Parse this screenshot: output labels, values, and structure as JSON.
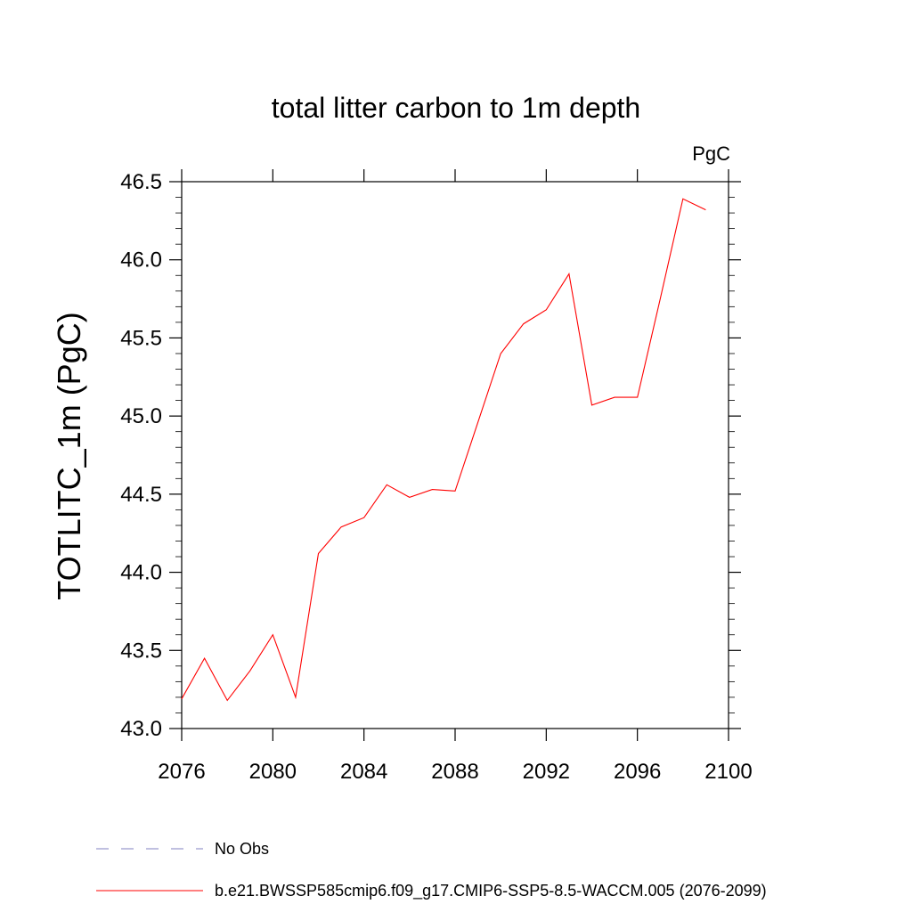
{
  "chart_data": {
    "type": "line",
    "title": "total litter carbon to 1m depth",
    "units_label": "PgC",
    "xlabel": "",
    "ylabel": "TOTLITC_1m  (PgC)",
    "xlim": [
      2076,
      2100
    ],
    "ylim": [
      43.0,
      46.5
    ],
    "xticks": [
      2076,
      2080,
      2084,
      2088,
      2092,
      2096,
      2100
    ],
    "yticks": [
      43.0,
      43.5,
      44.0,
      44.5,
      45.0,
      45.5,
      46.0,
      46.5
    ],
    "xtick_labels": [
      "2076",
      "2080",
      "2084",
      "2088",
      "2092",
      "2096",
      "2100"
    ],
    "ytick_labels": [
      "43.0",
      "43.5",
      "44.0",
      "44.5",
      "45.0",
      "45.5",
      "46.0",
      "46.5"
    ],
    "grid": false,
    "legend_position": "bottom",
    "series": [
      {
        "name": "b.e21.BWSSP585cmip6.f09_g17.CMIP6-SSP5-8.5-WACCM.005 (2076-2099)",
        "color": "#ff0000",
        "style": "solid",
        "x": [
          2076,
          2077,
          2078,
          2079,
          2080,
          2081,
          2082,
          2083,
          2084,
          2085,
          2086,
          2087,
          2088,
          2089,
          2090,
          2091,
          2092,
          2093,
          2094,
          2095,
          2096,
          2097,
          2098,
          2099
        ],
        "values": [
          43.19,
          43.45,
          43.18,
          43.37,
          43.6,
          43.2,
          44.12,
          44.29,
          44.35,
          44.56,
          44.48,
          44.53,
          44.52,
          44.96,
          45.4,
          45.59,
          45.68,
          45.91,
          45.07,
          45.12,
          45.12,
          45.75,
          46.39,
          46.32
        ]
      }
    ],
    "legend": [
      {
        "label": "No Obs",
        "color": "#8080c0",
        "style": "dashed"
      },
      {
        "label": "b.e21.BWSSP585cmip6.f09_g17.CMIP6-SSP5-8.5-WACCM.005 (2076-2099)",
        "color": "#ff0000",
        "style": "solid"
      }
    ]
  }
}
